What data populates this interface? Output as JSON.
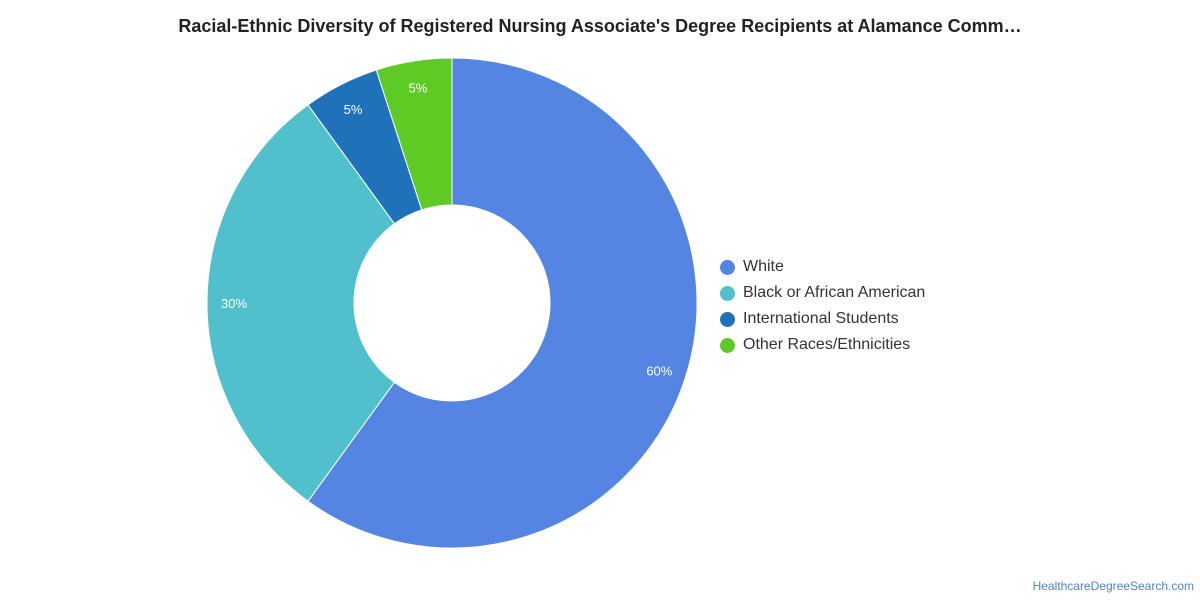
{
  "chart_data": {
    "type": "pie",
    "title": "Racial-Ethnic Diversity of Registered Nursing Associate's Degree Recipients at Alamance Comm…",
    "donut": true,
    "categories": [
      "White",
      "Black or African American",
      "International Students",
      "Other Races/Ethnicities"
    ],
    "values": [
      60,
      30,
      5,
      5
    ],
    "labels": [
      "60%",
      "30%",
      "5%",
      "5%"
    ],
    "colors": [
      "#5485E2",
      "#50C0CD",
      "#1F72BA",
      "#5ECB25"
    ],
    "legend_position": "right"
  },
  "footer": {
    "source": "HealthcareDegreeSearch.com"
  }
}
